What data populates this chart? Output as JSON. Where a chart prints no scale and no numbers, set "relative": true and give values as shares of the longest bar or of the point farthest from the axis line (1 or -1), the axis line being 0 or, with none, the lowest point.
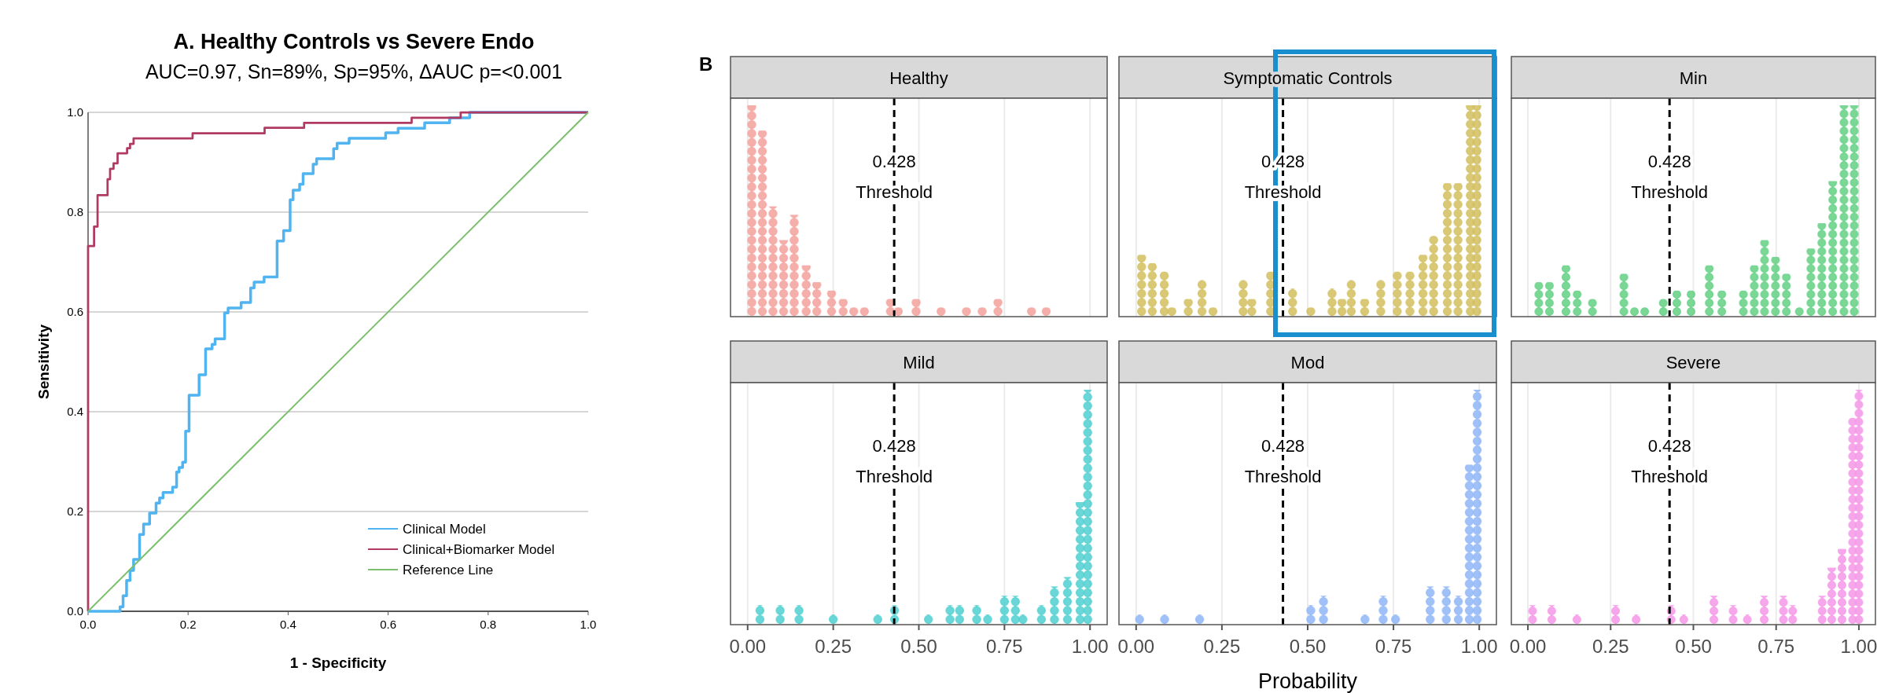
{
  "chart_data": [
    {
      "type": "line",
      "title": "A. Healthy Controls vs Severe Endo",
      "subtitle": "AUC=0.97, Sn=89%, Sp=95%, ΔAUC p=<0.001",
      "xlabel": "1 - Specificity",
      "ylabel": "Sensitivity",
      "xlim": [
        0,
        1
      ],
      "ylim": [
        0,
        1
      ],
      "xticks": [
        {
          "value": 0,
          "label": "0.0"
        },
        {
          "value": 0.2,
          "label": "0.2"
        },
        {
          "value": 0.4,
          "label": "0.4"
        },
        {
          "value": 0.6,
          "label": "0.6"
        },
        {
          "value": 0.8,
          "label": "0.8"
        },
        {
          "value": 1,
          "label": "1.0"
        }
      ],
      "yticks": [
        {
          "value": 0,
          "label": "0.0"
        },
        {
          "value": 0.2,
          "label": "0.2"
        },
        {
          "value": 0.4,
          "label": "0.4"
        },
        {
          "value": 0.6,
          "label": "0.6"
        },
        {
          "value": 0.8,
          "label": "0.8"
        },
        {
          "value": 1,
          "label": "1.0"
        }
      ],
      "grid": "y",
      "legend": "bottom right",
      "marker": "none",
      "line_style": "solid",
      "series": [
        {
          "name": "Clinical Model",
          "color": "#4fb4f0",
          "x": [
            0,
            0.064,
            0.064,
            0.07,
            0.07,
            0.077,
            0.077,
            0.084,
            0.084,
            0.091,
            0.091,
            0.103,
            0.103,
            0.111,
            0.111,
            0.123,
            0.123,
            0.136,
            0.136,
            0.143,
            0.143,
            0.15,
            0.15,
            0.169,
            0.169,
            0.177,
            0.177,
            0.182,
            0.182,
            0.189,
            0.189,
            0.195,
            0.195,
            0.202,
            0.202,
            0.222,
            0.222,
            0.235,
            0.235,
            0.248,
            0.248,
            0.254,
            0.254,
            0.273,
            0.273,
            0.28,
            0.28,
            0.306,
            0.306,
            0.325,
            0.325,
            0.332,
            0.332,
            0.352,
            0.352,
            0.378,
            0.378,
            0.391,
            0.391,
            0.404,
            0.404,
            0.41,
            0.41,
            0.423,
            0.423,
            0.43,
            0.43,
            0.45,
            0.45,
            0.457,
            0.457,
            0.491,
            0.491,
            0.498,
            0.498,
            0.522,
            0.522,
            0.595,
            0.595,
            0.62,
            0.62,
            0.673,
            0.673,
            0.723,
            0.723,
            0.763,
            0.763,
            1
          ],
          "values": [
            0,
            0,
            0.009,
            0.009,
            0.031,
            0.031,
            0.062,
            0.062,
            0.082,
            0.082,
            0.104,
            0.104,
            0.154,
            0.154,
            0.175,
            0.175,
            0.197,
            0.197,
            0.217,
            0.217,
            0.227,
            0.227,
            0.238,
            0.238,
            0.249,
            0.249,
            0.279,
            0.279,
            0.288,
            0.288,
            0.299,
            0.299,
            0.361,
            0.361,
            0.433,
            0.433,
            0.474,
            0.474,
            0.526,
            0.526,
            0.535,
            0.535,
            0.546,
            0.546,
            0.598,
            0.598,
            0.608,
            0.608,
            0.619,
            0.619,
            0.648,
            0.648,
            0.66,
            0.66,
            0.67,
            0.67,
            0.742,
            0.742,
            0.763,
            0.763,
            0.825,
            0.825,
            0.844,
            0.844,
            0.856,
            0.856,
            0.877,
            0.877,
            0.896,
            0.896,
            0.907,
            0.907,
            0.927,
            0.927,
            0.938,
            0.938,
            0.948,
            0.948,
            0.959,
            0.959,
            0.968,
            0.968,
            0.979,
            0.979,
            0.989,
            0.989,
            1,
            1
          ]
        },
        {
          "name": "Clinical+Biomarker Model",
          "color": "#b03a62",
          "x": [
            0,
            0,
            0.012,
            0.012,
            0.019,
            0.019,
            0.039,
            0.039,
            0.044,
            0.044,
            0.051,
            0.051,
            0.059,
            0.059,
            0.078,
            0.078,
            0.084,
            0.084,
            0.091,
            0.091,
            0.209,
            0.209,
            0.353,
            0.353,
            0.432,
            0.432,
            0.647,
            0.647,
            0.745,
            0.745,
            1
          ],
          "values": [
            0,
            0.732,
            0.732,
            0.771,
            0.771,
            0.834,
            0.834,
            0.866,
            0.866,
            0.887,
            0.887,
            0.898,
            0.898,
            0.918,
            0.918,
            0.928,
            0.928,
            0.937,
            0.937,
            0.948,
            0.948,
            0.958,
            0.958,
            0.969,
            0.969,
            0.979,
            0.979,
            0.989,
            0.989,
            1,
            1
          ]
        },
        {
          "name": "Reference Line",
          "color": "#7cbf6e",
          "x": [
            0,
            1
          ],
          "values": [
            0,
            1
          ]
        }
      ]
    },
    {
      "type": "bar",
      "title": "Healthy",
      "relative": true,
      "color": "#f4a19c",
      "annotations": [
        "B"
      ],
      "xlim": [
        -0.05,
        1.05
      ],
      "xticks": [
        0,
        0.25,
        0.5,
        0.75,
        1
      ],
      "grid": "x",
      "tick_labels": false,
      "ref_lines": [
        {
          "axis": "x",
          "value": 0.428,
          "label": "0.428\nThreshold",
          "line_style": "dashed"
        }
      ],
      "x": [
        0.012,
        0.043,
        0.074,
        0.105,
        0.136,
        0.171,
        0.202,
        0.245,
        0.279,
        0.31,
        0.341,
        0.417,
        0.44,
        0.492,
        0.565,
        0.639,
        0.685,
        0.731,
        0.829,
        0.872
      ],
      "values": [
        1,
        0.88,
        0.52,
        0.36,
        0.48,
        0.24,
        0.16,
        0.12,
        0.08,
        0.04,
        0.04,
        0.08,
        0.04,
        0.08,
        0.04,
        0.04,
        0.04,
        0.08,
        0.04,
        0.04
      ]
    },
    {
      "type": "bar",
      "title": "Symptomatic Controls",
      "relative": true,
      "color": "#d2bf5e",
      "xlim": [
        -0.05,
        1.05
      ],
      "xticks": [
        0,
        0.25,
        0.5,
        0.75,
        1
      ],
      "grid": "x",
      "tick_labels": false,
      "ref_lines": [
        {
          "axis": "x",
          "value": 0.428,
          "label": "0.428\nThreshold",
          "line_style": "dashed"
        }
      ],
      "x": [
        0.016,
        0.047,
        0.082,
        0.104,
        0.152,
        0.192,
        0.224,
        0.312,
        0.337,
        0.392,
        0.456,
        0.509,
        0.571,
        0.6,
        0.627,
        0.666,
        0.713,
        0.761,
        0.798,
        0.836,
        0.867,
        0.907,
        0.938,
        0.974,
        0.993
      ],
      "values": [
        0.29,
        0.25,
        0.21,
        0.04,
        0.08,
        0.17,
        0.04,
        0.17,
        0.08,
        0.21,
        0.13,
        0.04,
        0.13,
        0.08,
        0.17,
        0.08,
        0.17,
        0.21,
        0.21,
        0.29,
        0.38,
        0.63,
        0.63,
        1,
        1
      ]
    },
    {
      "type": "bar",
      "title": "Min",
      "relative": true,
      "color": "#63d083",
      "xlim": [
        -0.05,
        1.05
      ],
      "xticks": [
        0,
        0.25,
        0.5,
        0.75,
        1
      ],
      "grid": "x",
      "tick_labels": false,
      "ref_lines": [
        {
          "axis": "x",
          "value": 0.428,
          "label": "0.428\nThreshold",
          "line_style": "dashed"
        }
      ],
      "x": [
        0.033,
        0.065,
        0.115,
        0.149,
        0.195,
        0.29,
        0.322,
        0.353,
        0.409,
        0.45,
        0.493,
        0.548,
        0.586,
        0.651,
        0.684,
        0.715,
        0.748,
        0.781,
        0.82,
        0.855,
        0.888,
        0.921,
        0.955,
        0.986
      ],
      "values": [
        0.16,
        0.16,
        0.24,
        0.12,
        0.08,
        0.2,
        0.04,
        0.04,
        0.08,
        0.12,
        0.12,
        0.24,
        0.12,
        0.12,
        0.24,
        0.36,
        0.28,
        0.2,
        0.04,
        0.32,
        0.44,
        0.64,
        1,
        1
      ]
    },
    {
      "type": "bar",
      "title": "Mild",
      "relative": true,
      "color": "#4fcfd0",
      "xlim": [
        -0.05,
        1.05
      ],
      "xticks": [
        {
          "value": 0,
          "label": "0.00"
        },
        {
          "value": 0.25,
          "label": "0.25"
        },
        {
          "value": 0.5,
          "label": "0.50"
        },
        {
          "value": 0.75,
          "label": "0.75"
        },
        {
          "value": 1,
          "label": "1.00"
        }
      ],
      "grid": "x",
      "tick_labels": "x",
      "ref_lines": [
        {
          "axis": "x",
          "value": 0.428,
          "label": "0.428\nThreshold",
          "line_style": "dashed"
        }
      ],
      "x": [
        0.036,
        0.095,
        0.15,
        0.25,
        0.38,
        0.429,
        0.528,
        0.591,
        0.619,
        0.669,
        0.701,
        0.75,
        0.782,
        0.804,
        0.858,
        0.896,
        0.934,
        0.971,
        0.993
      ],
      "values": [
        0.08,
        0.08,
        0.08,
        0.04,
        0.04,
        0.08,
        0.04,
        0.08,
        0.08,
        0.08,
        0.04,
        0.12,
        0.12,
        0.04,
        0.08,
        0.16,
        0.2,
        0.52,
        1
      ]
    },
    {
      "type": "bar",
      "title": "Mod",
      "xlabel": "Probability",
      "relative": true,
      "color": "#90b6f7",
      "xlim": [
        -0.05,
        1.05
      ],
      "xticks": [
        {
          "value": 0,
          "label": "0.00"
        },
        {
          "value": 0.25,
          "label": "0.25"
        },
        {
          "value": 0.5,
          "label": "0.50"
        },
        {
          "value": 0.75,
          "label": "0.75"
        },
        {
          "value": 1,
          "label": "1.00"
        }
      ],
      "grid": "x",
      "tick_labels": "x",
      "ref_lines": [
        {
          "axis": "x",
          "value": 0.428,
          "label": "0.428\nThreshold",
          "line_style": "dashed"
        }
      ],
      "x": [
        0.01,
        0.083,
        0.185,
        0.509,
        0.546,
        0.667,
        0.72,
        0.756,
        0.857,
        0.904,
        0.939,
        0.971,
        0.994
      ],
      "values": [
        0.04,
        0.04,
        0.04,
        0.08,
        0.12,
        0.04,
        0.12,
        0.04,
        0.16,
        0.16,
        0.12,
        0.68,
        1
      ]
    },
    {
      "type": "bar",
      "title": "Severe",
      "relative": true,
      "color": "#f598e8",
      "xlim": [
        -0.05,
        1.05
      ],
      "xticks": [
        {
          "value": 0,
          "label": "0.00"
        },
        {
          "value": 0.25,
          "label": "0.25"
        },
        {
          "value": 0.5,
          "label": "0.50"
        },
        {
          "value": 0.75,
          "label": "0.75"
        },
        {
          "value": 1,
          "label": "1.00"
        }
      ],
      "grid": "x",
      "tick_labels": "x",
      "ref_lines": [
        {
          "axis": "x",
          "value": 0.428,
          "label": "0.428\nThreshold",
          "line_style": "dashed"
        }
      ],
      "x": [
        0.014,
        0.072,
        0.148,
        0.265,
        0.327,
        0.433,
        0.471,
        0.562,
        0.62,
        0.663,
        0.714,
        0.772,
        0.8,
        0.889,
        0.918,
        0.949,
        0.981,
        1
      ],
      "values": [
        0.08,
        0.08,
        0.04,
        0.08,
        0.04,
        0.08,
        0.04,
        0.12,
        0.08,
        0.04,
        0.12,
        0.12,
        0.08,
        0.12,
        0.24,
        0.32,
        0.88,
        1
      ]
    }
  ]
}
